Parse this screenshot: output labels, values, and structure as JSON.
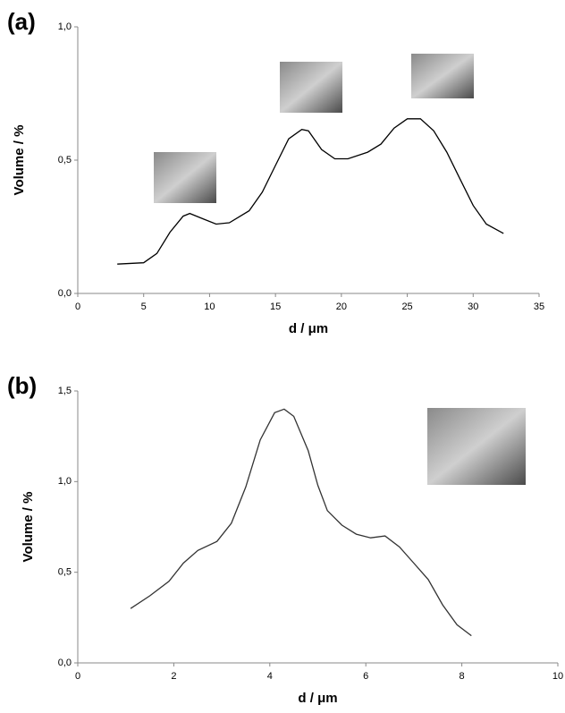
{
  "chart_data": [
    {
      "type": "line",
      "panel_label": "(a)",
      "x_label": "d / μm",
      "y_label": "Volume / %",
      "x": [
        3,
        5,
        6,
        7,
        8,
        8.5,
        9.5,
        10.5,
        11.5,
        13,
        14,
        15,
        16,
        17,
        17.5,
        18.5,
        19.5,
        20.5,
        22,
        23,
        24,
        25,
        26,
        27,
        28,
        29,
        30,
        31,
        32.3
      ],
      "series": [
        {
          "color": "#000000",
          "values": [
            0.11,
            0.115,
            0.15,
            0.23,
            0.29,
            0.3,
            0.28,
            0.26,
            0.265,
            0.31,
            0.38,
            0.48,
            0.58,
            0.615,
            0.61,
            0.54,
            0.505,
            0.505,
            0.53,
            0.56,
            0.62,
            0.655,
            0.655,
            0.61,
            0.53,
            0.43,
            0.33,
            0.26,
            0.225
          ]
        }
      ],
      "xlim": [
        0,
        35
      ],
      "xticks": [
        0,
        5,
        10,
        15,
        20,
        25,
        30,
        35
      ],
      "ylim": [
        0,
        1
      ],
      "yticks": [
        {
          "value": 0,
          "label": "0,0"
        },
        {
          "value": 0.5,
          "label": "0,5"
        },
        {
          "value": 1,
          "label": "1,0"
        }
      ]
    },
    {
      "type": "line",
      "panel_label": "(b)",
      "x_label": "d / μm",
      "y_label": "Volume / %",
      "x": [
        1.1,
        1.5,
        1.9,
        2.2,
        2.5,
        2.9,
        3.2,
        3.5,
        3.8,
        4.1,
        4.3,
        4.5,
        4.8,
        5.0,
        5.2,
        5.5,
        5.8,
        6.1,
        6.4,
        6.7,
        7.0,
        7.3,
        7.6,
        7.9,
        8.2
      ],
      "series": [
        {
          "color": "#333333",
          "values": [
            0.3,
            0.37,
            0.45,
            0.55,
            0.62,
            0.67,
            0.77,
            0.97,
            1.23,
            1.38,
            1.4,
            1.36,
            1.17,
            0.98,
            0.84,
            0.76,
            0.71,
            0.69,
            0.7,
            0.64,
            0.55,
            0.46,
            0.32,
            0.21,
            0.15
          ]
        }
      ],
      "xlim": [
        0,
        10
      ],
      "xticks": [
        0,
        2,
        4,
        6,
        8,
        10
      ],
      "ylim": [
        0,
        1.5
      ],
      "yticks": [
        {
          "value": 0,
          "label": "0,0"
        },
        {
          "value": 0.5,
          "label": "0,5"
        },
        {
          "value": 1,
          "label": "1,0"
        },
        {
          "value": 1.5,
          "label": "1,5"
        }
      ]
    }
  ]
}
